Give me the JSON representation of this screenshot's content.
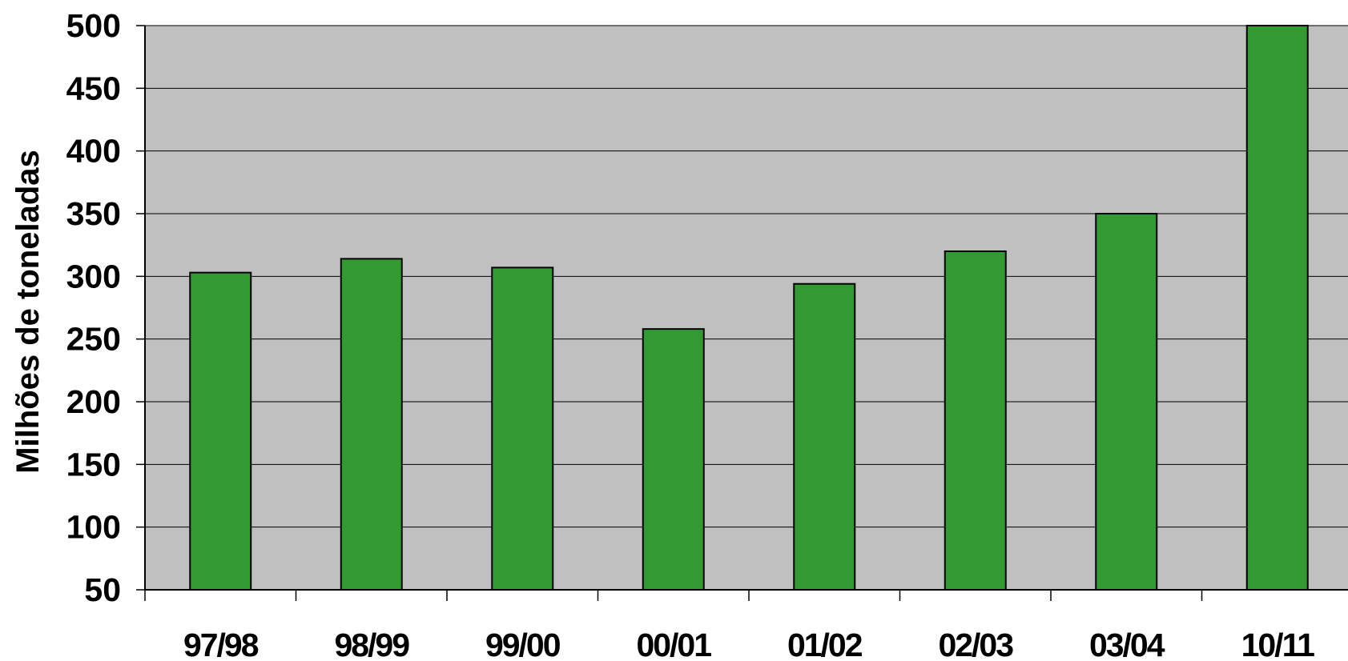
{
  "chart_data": {
    "type": "bar",
    "categories": [
      "97/98",
      "98/99",
      "99/00",
      "00/01",
      "01/02",
      "02/03",
      "03/04",
      "10/11"
    ],
    "values": [
      303,
      314,
      307,
      258,
      294,
      320,
      350,
      500
    ],
    "ylabel": "Milhões de toneladas",
    "xlabel": "",
    "ylim": [
      50,
      500
    ],
    "yticks": [
      50,
      100,
      150,
      200,
      250,
      300,
      350,
      400,
      450,
      500
    ],
    "grid": true,
    "colors": {
      "bar": "#339933",
      "plot_background": "#c0c0c0",
      "gridline": "#000000"
    }
  }
}
